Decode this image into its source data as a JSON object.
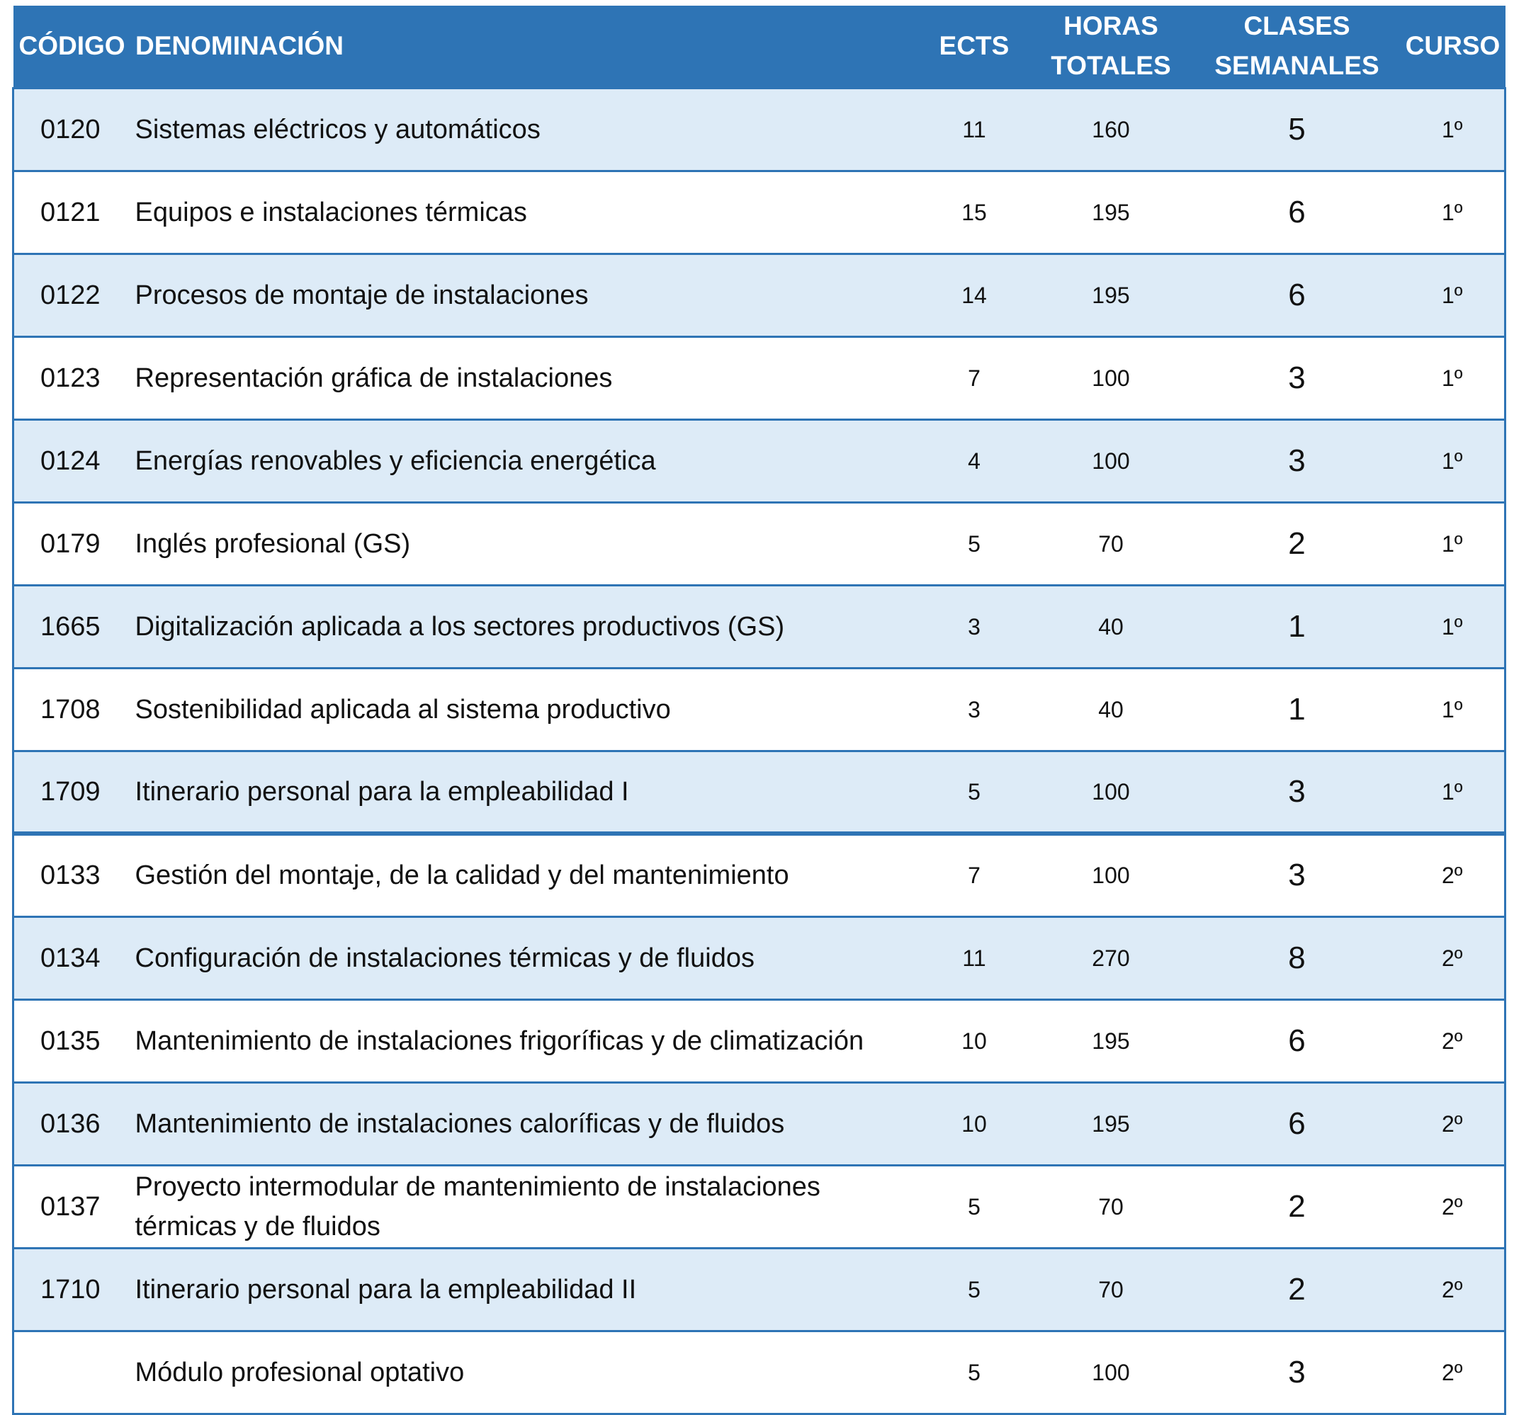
{
  "headers": {
    "codigo": "CÓDIGO",
    "denominacion": "DENOMINACIÓN",
    "ects": "ECTS",
    "horas_line1": "HORAS",
    "horas_line2": "TOTALES",
    "clases_line1": "CLASES",
    "clases_line2": "SEMANALES",
    "curso": "CURSO"
  },
  "rows": [
    {
      "codigo": "0120",
      "denominacion": "Sistemas eléctricos y automáticos",
      "ects": "11",
      "horas": "160",
      "clases": "5",
      "curso": "1º"
    },
    {
      "codigo": "0121",
      "denominacion": "Equipos e instalaciones térmicas",
      "ects": "15",
      "horas": "195",
      "clases": "6",
      "curso": "1º"
    },
    {
      "codigo": "0122",
      "denominacion": "Procesos de montaje de instalaciones",
      "ects": "14",
      "horas": "195",
      "clases": "6",
      "curso": "1º"
    },
    {
      "codigo": "0123",
      "denominacion": "Representación gráfica de instalaciones",
      "ects": "7",
      "horas": "100",
      "clases": "3",
      "curso": "1º"
    },
    {
      "codigo": "0124",
      "denominacion": "Energías renovables y eficiencia energética",
      "ects": "4",
      "horas": "100",
      "clases": "3",
      "curso": "1º"
    },
    {
      "codigo": "0179",
      "denominacion": "Inglés profesional (GS)",
      "ects": "5",
      "horas": "70",
      "clases": "2",
      "curso": "1º"
    },
    {
      "codigo": "1665",
      "denominacion": "Digitalización aplicada a los sectores productivos (GS)",
      "ects": "3",
      "horas": "40",
      "clases": "1",
      "curso": "1º"
    },
    {
      "codigo": "1708",
      "denominacion": "Sostenibilidad aplicada al sistema productivo",
      "ects": "3",
      "horas": "40",
      "clases": "1",
      "curso": "1º"
    },
    {
      "codigo": "1709",
      "denominacion": "Itinerario personal para la empleabilidad I",
      "ects": "5",
      "horas": "100",
      "clases": "3",
      "curso": "1º"
    },
    {
      "codigo": "0133",
      "denominacion": "Gestión del montaje, de la calidad y del mantenimiento",
      "ects": "7",
      "horas": "100",
      "clases": "3",
      "curso": "2º"
    },
    {
      "codigo": "0134",
      "denominacion": "Configuración de instalaciones térmicas y de fluidos",
      "ects": "11",
      "horas": "270",
      "clases": "8",
      "curso": "2º"
    },
    {
      "codigo": "0135",
      "denominacion": "Mantenimiento de instalaciones frigoríficas y de climatización",
      "ects": "10",
      "horas": "195",
      "clases": "6",
      "curso": "2º"
    },
    {
      "codigo": "0136",
      "denominacion": "Mantenimiento de instalaciones caloríficas y de fluidos",
      "ects": "10",
      "horas": "195",
      "clases": "6",
      "curso": "2º"
    },
    {
      "codigo": "0137",
      "denominacion": "Proyecto intermodular de mantenimiento de instalaciones térmicas y de fluidos",
      "ects": "5",
      "horas": "70",
      "clases": "2",
      "curso": "2º"
    },
    {
      "codigo": "1710",
      "denominacion": "Itinerario personal para la empleabilidad II",
      "ects": "5",
      "horas": "70",
      "clases": "2",
      "curso": "2º"
    },
    {
      "codigo": "",
      "denominacion": "Módulo profesional optativo",
      "ects": "5",
      "horas": "100",
      "clases": "3",
      "curso": "2º"
    }
  ]
}
